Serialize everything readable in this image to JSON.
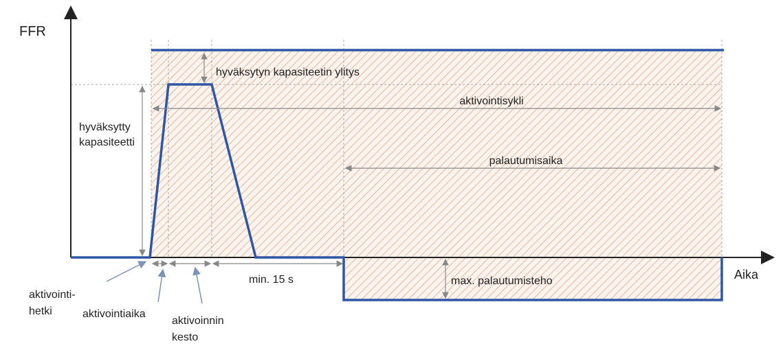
{
  "axes": {
    "y_label": "FFR",
    "x_label": "Aika"
  },
  "annotations": {
    "overshoot": "hyväksytyn kapasiteetin ylitys",
    "capacity": [
      "hyväksytty",
      "kapasiteetti"
    ],
    "cycle": "aktivointisykli",
    "recovery_time": "palautumisaika",
    "min_gap": "min. 15 s",
    "max_recovery_power": "max. palautumisteho",
    "activation_moment": [
      "aktivointi-",
      "hetki"
    ],
    "activation_time": "aktivointiaika",
    "activation_duration": [
      "aktivoinnin",
      "kesto"
    ]
  }
}
